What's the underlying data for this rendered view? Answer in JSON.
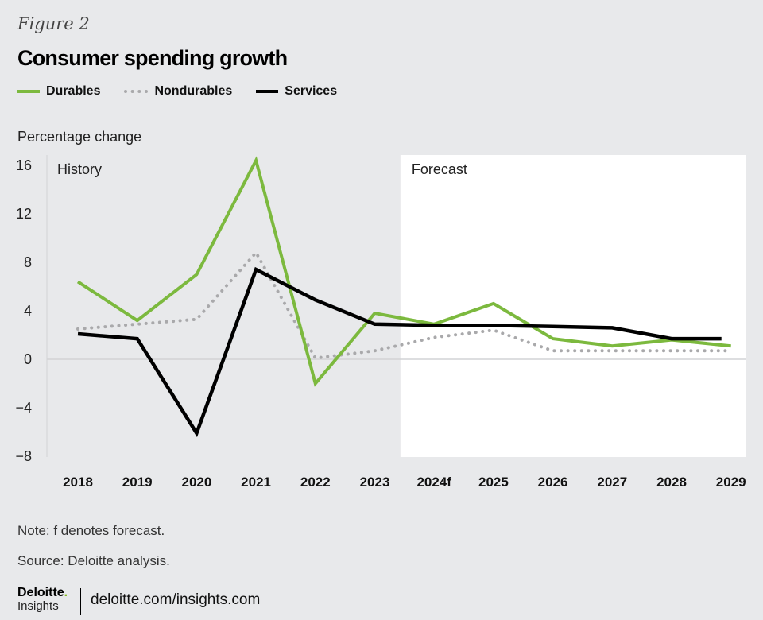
{
  "figure_label": "Figure 2",
  "footer": {
    "note": "Note: f denotes forecast.",
    "source": "Source: Deloitte analysis.",
    "logo_brand": "Deloitte",
    "logo_dot": ".",
    "logo_sub": "Insights",
    "site": "deloitte.com/insights.com"
  },
  "colors": {
    "durables": "#7cb93e",
    "nondurables": "#a9a9ab",
    "services": "#000000",
    "background": "#e8e9eb",
    "forecast_region": "#ffffff"
  },
  "chart_data": {
    "type": "line",
    "title": "Consumer spending growth",
    "xlabel": "",
    "ylabel": "Percentage change",
    "categories": [
      "2018",
      "2019",
      "2020",
      "2021",
      "2022",
      "2023",
      "2024f",
      "2025",
      "2026",
      "2027",
      "2028",
      "2029"
    ],
    "yticks": [
      16,
      12,
      8,
      4,
      0,
      -4,
      -8
    ],
    "ytick_labels": [
      "16",
      "12",
      "8",
      "4",
      "0",
      "−4",
      "−8"
    ],
    "ylim": [
      -8,
      16
    ],
    "grid": false,
    "zero_line": true,
    "legend_position": "top-left",
    "regions": [
      {
        "label": "History",
        "from": "2018",
        "to": "2023"
      },
      {
        "label": "Forecast",
        "from": "2024f",
        "to": "2029",
        "highlighted": true
      }
    ],
    "series": [
      {
        "name": "Durables",
        "style": "solid",
        "values": [
          6.4,
          3.2,
          7.0,
          16.4,
          -2.0,
          3.8,
          2.9,
          4.6,
          1.7,
          1.1,
          1.6,
          1.1
        ]
      },
      {
        "name": "Nondurables",
        "style": "dotted",
        "values": [
          2.5,
          2.9,
          3.3,
          8.8,
          0.1,
          0.7,
          1.8,
          2.4,
          0.7,
          0.7,
          0.7,
          0.7
        ]
      },
      {
        "name": "Services",
        "style": "solid",
        "values": [
          2.1,
          1.7,
          -6.1,
          7.4,
          4.9,
          2.9,
          2.8,
          2.8,
          2.7,
          2.6,
          1.7,
          1.7
        ]
      }
    ]
  }
}
